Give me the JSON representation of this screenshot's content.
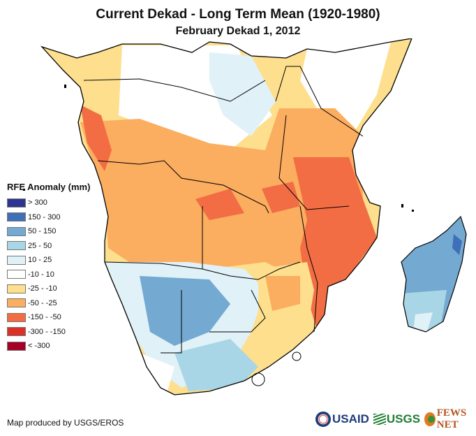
{
  "header": {
    "title": "Current Dekad - Long Term Mean (1920-1980)",
    "subtitle": "February Dekad 1, 2012"
  },
  "legend": {
    "title": "RFE Anomaly (mm)",
    "items": [
      {
        "label": "> 300",
        "color": "#2c3591"
      },
      {
        "label": "150 - 300",
        "color": "#3f6fb8"
      },
      {
        "label": "50 - 150",
        "color": "#74a9d1"
      },
      {
        "label": "25 - 50",
        "color": "#a9d6e6"
      },
      {
        "label": "10 - 25",
        "color": "#e0f1f7"
      },
      {
        "label": "-10 - 10",
        "color": "#ffffff"
      },
      {
        "label": "-25 - -10",
        "color": "#fddf8e"
      },
      {
        "label": "-50 - -25",
        "color": "#fbad60"
      },
      {
        "label": "-150 - -50",
        "color": "#f26d44"
      },
      {
        "label": "-300 - -150",
        "color": "#d93228"
      },
      {
        "label": "< -300",
        "color": "#a50026"
      }
    ]
  },
  "map": {
    "region": "Southern and Central Africa with Madagascar",
    "regions": [
      {
        "name": "west-central-coast",
        "category": "-50 - -25"
      },
      {
        "name": "gabon-coast",
        "category": "-150 - -50"
      },
      {
        "name": "congo-basin-north",
        "category": "-10 - 10"
      },
      {
        "name": "east-africa-tanzania",
        "category": "-50 - -25"
      },
      {
        "name": "southern-tanzania-mozambique",
        "category": "-150 - -50"
      },
      {
        "name": "angola-zambia",
        "category": "-50 - -25"
      },
      {
        "name": "namibia-botswana",
        "category": "50 - 150"
      },
      {
        "name": "south-africa-west",
        "category": "-10 - 10"
      },
      {
        "name": "south-africa-east",
        "category": "-25 - -10"
      },
      {
        "name": "madagascar",
        "category": "50 - 150"
      }
    ]
  },
  "footer": {
    "credit": "Map produced by USGS/EROS",
    "logos": {
      "usaid": "USAID",
      "usgs": "USGS",
      "fews": "FEWS NET"
    }
  }
}
